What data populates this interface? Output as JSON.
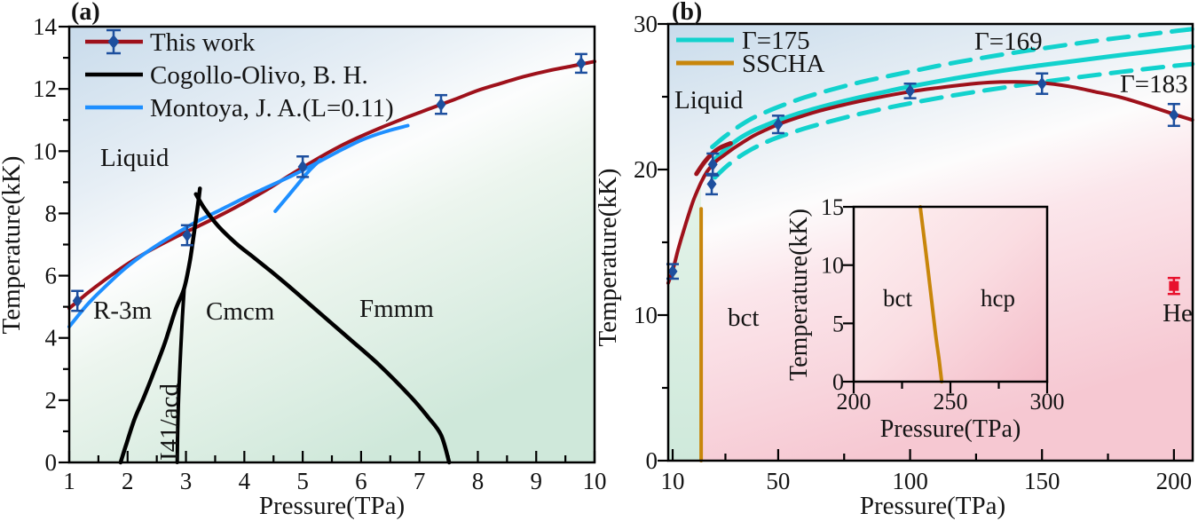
{
  "figure": {
    "panel_a_tag": "(a)",
    "panel_b_tag": "(b)"
  },
  "colors": {
    "darkred": "#9e111b",
    "navy": "#1d4f9e",
    "blue": "#1e8fff",
    "black": "#000000",
    "cyan": "#12d2cd",
    "gold": "#c8860b",
    "red": "#e8112d"
  },
  "panel_a": {
    "xlabel": "Pressure(TPa)",
    "ylabel": "Temperature(kK)",
    "legend": [
      {
        "label": "This work"
      },
      {
        "label": "Cogollo-Olivo, B. H."
      },
      {
        "label": "Montoya, J. A.(L=0.11)"
      }
    ],
    "labels": {
      "liquid": "Liquid",
      "r3m": "R-3m",
      "cmcm": "Cmcm",
      "fmmm": "Fmmm",
      "i41acd": "I41/acd"
    }
  },
  "panel_b": {
    "xlabel": "Pressure(TPa)",
    "ylabel": "Temperature(kK)",
    "legend": [
      {
        "label": "Γ=175"
      },
      {
        "label": "SSCHA"
      }
    ],
    "labels": {
      "liquid": "Liquid",
      "bct": "bct",
      "gamma169": "Γ=169",
      "gamma183": "Γ=183",
      "he": "He"
    }
  },
  "inset": {
    "xlabel": "Pressure(TPa)",
    "ylabel": "Temperature(kK)",
    "labels": {
      "bct": "bct",
      "hcp": "hcp"
    }
  },
  "chart_data": [
    {
      "id": "a",
      "type": "line",
      "title": "(a)",
      "xlabel": "Pressure(TPa)",
      "ylabel": "Temperature(kK)",
      "xlim": [
        1,
        10
      ],
      "ylim": [
        0,
        14
      ],
      "grid": false,
      "legend_position": "top-left",
      "xticks": [
        1,
        2,
        3,
        4,
        5,
        6,
        7,
        8,
        9,
        10
      ],
      "xminor": [
        1.5,
        2.5,
        3.5,
        4.5,
        5.5,
        6.5,
        7.5,
        8.5,
        9.5
      ],
      "yticks": [
        0,
        2,
        4,
        6,
        8,
        10,
        12,
        14
      ],
      "yminor": [
        1,
        3,
        5,
        7,
        9,
        11,
        13
      ],
      "series": [
        {
          "name": "this-work-melting-line",
          "color": "darkred",
          "width": 4,
          "points": [
            [
              1.0,
              4.95
            ],
            [
              1.3,
              5.42
            ],
            [
              1.6,
              5.85
            ],
            [
              2.0,
              6.38
            ],
            [
              2.4,
              6.83
            ],
            [
              2.8,
              7.22
            ],
            [
              3.2,
              7.58
            ],
            [
              3.6,
              7.95
            ],
            [
              4.0,
              8.35
            ],
            [
              4.4,
              8.78
            ],
            [
              4.8,
              9.25
            ],
            [
              5.2,
              9.7
            ],
            [
              5.6,
              10.12
            ],
            [
              6.0,
              10.48
            ],
            [
              6.4,
              10.8
            ],
            [
              6.8,
              11.1
            ],
            [
              7.2,
              11.38
            ],
            [
              7.6,
              11.66
            ],
            [
              8.0,
              11.95
            ],
            [
              8.4,
              12.18
            ],
            [
              8.8,
              12.4
            ],
            [
              9.2,
              12.58
            ],
            [
              9.6,
              12.73
            ],
            [
              10.0,
              12.88
            ]
          ]
        },
        {
          "name": "montoya-melting-line",
          "color": "blue",
          "width": 4,
          "points": [
            [
              1.0,
              4.36
            ],
            [
              1.3,
              5.05
            ],
            [
              1.6,
              5.62
            ],
            [
              2.0,
              6.3
            ],
            [
              2.4,
              6.85
            ],
            [
              2.8,
              7.32
            ],
            [
              3.2,
              7.75
            ],
            [
              3.6,
              8.12
            ],
            [
              4.0,
              8.5
            ],
            [
              4.4,
              8.85
            ],
            [
              4.8,
              9.2
            ],
            [
              5.2,
              9.58
            ],
            [
              5.6,
              9.98
            ],
            [
              6.0,
              10.35
            ],
            [
              6.4,
              10.62
            ],
            [
              6.8,
              10.82
            ]
          ]
        },
        {
          "name": "montoya-branch",
          "color": "blue",
          "width": 4,
          "points": [
            [
              4.53,
              8.07
            ],
            [
              4.7,
              8.45
            ],
            [
              4.9,
              8.9
            ],
            [
              5.1,
              9.35
            ],
            [
              5.3,
              9.72
            ]
          ]
        },
        {
          "name": "cogollo-olivo-r3m-boundary",
          "color": "black",
          "width": 4.5,
          "points": [
            [
              1.88,
              0
            ],
            [
              1.98,
              0.6
            ],
            [
              2.12,
              1.4
            ],
            [
              2.28,
              2.1
            ],
            [
              2.46,
              2.95
            ],
            [
              2.64,
              3.85
            ],
            [
              2.82,
              4.9
            ],
            [
              2.97,
              5.6
            ],
            [
              3.07,
              6.5
            ],
            [
              3.14,
              7.4
            ],
            [
              3.2,
              8.2
            ],
            [
              3.24,
              8.8
            ]
          ]
        },
        {
          "name": "cogollo-olivo-i41acd-boundary",
          "color": "black",
          "width": 4,
          "points": [
            [
              2.85,
              0
            ],
            [
              2.86,
              1.2
            ],
            [
              2.88,
              2.4
            ],
            [
              2.91,
              3.6
            ],
            [
              2.94,
              4.7
            ],
            [
              2.97,
              5.6
            ]
          ]
        },
        {
          "name": "cogollo-olivo-cmcm-fmmm-boundary",
          "color": "black",
          "width": 4.5,
          "points": [
            [
              3.17,
              8.62
            ],
            [
              3.32,
              8.15
            ],
            [
              3.55,
              7.6
            ],
            [
              3.85,
              7.05
            ],
            [
              4.15,
              6.6
            ],
            [
              4.45,
              6.15
            ],
            [
              4.8,
              5.6
            ],
            [
              5.2,
              4.95
            ],
            [
              5.77,
              4.02
            ],
            [
              6.3,
              3.15
            ],
            [
              6.85,
              2.11
            ],
            [
              7.15,
              1.45
            ],
            [
              7.37,
              0.88
            ],
            [
              7.51,
              0
            ]
          ]
        },
        {
          "name": "this-work-points",
          "type": "scatter",
          "marker": "diamond",
          "color": "navy",
          "points": [
            [
              1.14,
              5.19,
              0.32
            ],
            [
              3.02,
              7.3,
              0.32
            ],
            [
              5.0,
              9.5,
              0.33
            ],
            [
              7.37,
              11.5,
              0.3
            ],
            [
              9.77,
              12.82,
              0.3
            ]
          ]
        }
      ],
      "phase_labels": [
        "Liquid",
        "R-3m",
        "Cmcm",
        "Fmmm",
        "I41/acd"
      ]
    },
    {
      "id": "b",
      "type": "line",
      "title": "(b)",
      "xlabel": "Pressure(TPa)",
      "ylabel": "Temperature(kK)",
      "xlim": [
        8.3,
        207
      ],
      "ylim": [
        0,
        30
      ],
      "grid": false,
      "legend_position": "top-left",
      "xticks": [
        10,
        50,
        100,
        150,
        200
      ],
      "xminor": [
        30,
        75,
        125,
        175
      ],
      "yticks": [
        0,
        10,
        20,
        30
      ],
      "yminor": [
        5,
        15,
        25
      ],
      "series": [
        {
          "name": "gold-bct-boundary-vertical",
          "color": "gold",
          "width": 4,
          "points": [
            [
              20.8,
              0
            ],
            [
              20.8,
              17.3
            ]
          ]
        },
        {
          "name": "gamma-169-dashed",
          "color": "cyan",
          "width": 5,
          "dash": "23 13",
          "points": [
            [
              25,
              21.55
            ],
            [
              30,
              22.3
            ],
            [
              35,
              22.95
            ],
            [
              40,
              23.5
            ],
            [
              45,
              23.92
            ],
            [
              50,
              24.3
            ],
            [
              60,
              24.95
            ],
            [
              70,
              25.48
            ],
            [
              80,
              25.95
            ],
            [
              90,
              26.35
            ],
            [
              100,
              26.73
            ],
            [
              115,
              27.28
            ],
            [
              130,
              27.75
            ],
            [
              145,
              28.18
            ],
            [
              160,
              28.58
            ],
            [
              175,
              28.95
            ],
            [
              190,
              29.28
            ],
            [
              200,
              29.5
            ],
            [
              207,
              29.65
            ]
          ]
        },
        {
          "name": "gamma-183-dashed",
          "color": "cyan",
          "width": 5,
          "dash": "23 13",
          "points": [
            [
              26,
              19.45
            ],
            [
              30,
              20.15
            ],
            [
              35,
              20.85
            ],
            [
              40,
              21.4
            ],
            [
              45,
              21.85
            ],
            [
              50,
              22.22
            ],
            [
              60,
              22.82
            ],
            [
              70,
              23.32
            ],
            [
              80,
              23.78
            ],
            [
              90,
              24.18
            ],
            [
              100,
              24.55
            ],
            [
              115,
              25.05
            ],
            [
              130,
              25.48
            ],
            [
              145,
              25.88
            ],
            [
              160,
              26.25
            ],
            [
              175,
              26.6
            ],
            [
              190,
              26.92
            ],
            [
              200,
              27.12
            ],
            [
              207,
              27.25
            ]
          ]
        },
        {
          "name": "gamma-175-solid",
          "color": "cyan",
          "width": 5,
          "points": [
            [
              26,
              20.7
            ],
            [
              30,
              21.4
            ],
            [
              35,
              22.1
            ],
            [
              40,
              22.62
            ],
            [
              45,
              23.02
            ],
            [
              50,
              23.38
            ],
            [
              60,
              23.98
            ],
            [
              70,
              24.48
            ],
            [
              80,
              24.92
            ],
            [
              90,
              25.32
            ],
            [
              100,
              25.7
            ],
            [
              115,
              26.2
            ],
            [
              130,
              26.65
            ],
            [
              145,
              27.05
            ],
            [
              160,
              27.4
            ],
            [
              175,
              27.75
            ],
            [
              190,
              28.08
            ],
            [
              200,
              28.3
            ],
            [
              207,
              28.45
            ]
          ]
        },
        {
          "name": "this-work-bct-segment",
          "color": "darkred",
          "width": 5,
          "points": [
            [
              19,
              19.7
            ],
            [
              22,
              20.5
            ],
            [
              25,
              21.1
            ],
            [
              28,
              21.5
            ],
            [
              32,
              21.8
            ]
          ]
        },
        {
          "name": "this-work-melting-line",
          "color": "darkred",
          "width": 4,
          "points": [
            [
              8.3,
              12.2
            ],
            [
              9.2,
              12.65
            ],
            [
              10,
              13.05
            ],
            [
              11,
              13.75
            ],
            [
              12,
              14.45
            ],
            [
              13.5,
              15.4
            ],
            [
              15,
              16.3
            ],
            [
              16.5,
              17.15
            ],
            [
              18,
              17.95
            ],
            [
              19.5,
              18.6
            ],
            [
              21,
              19.2
            ],
            [
              23,
              19.85
            ],
            [
              25,
              20.3
            ],
            [
              27,
              20.65
            ],
            [
              30,
              21.05
            ],
            [
              33,
              21.45
            ],
            [
              36,
              21.8
            ],
            [
              40,
              22.25
            ],
            [
              45,
              22.7
            ],
            [
              50,
              23.1
            ],
            [
              57,
              23.55
            ],
            [
              65,
              24.0
            ],
            [
              75,
              24.45
            ],
            [
              85,
              24.85
            ],
            [
              100,
              25.35
            ],
            [
              110,
              25.6
            ],
            [
              120,
              25.82
            ],
            [
              130,
              25.98
            ],
            [
              140,
              26.02
            ],
            [
              150,
              25.95
            ],
            [
              160,
              25.72
            ],
            [
              170,
              25.35
            ],
            [
              180,
              24.95
            ],
            [
              190,
              24.4
            ],
            [
              200,
              23.8
            ],
            [
              207,
              23.4
            ]
          ]
        },
        {
          "name": "this-work-points",
          "type": "scatter",
          "marker": "diamond",
          "color": "navy",
          "points": [
            [
              10,
              13.0,
              0.5
            ],
            [
              24.8,
              19.0,
              0.7
            ],
            [
              25.2,
              20.35,
              0.75
            ],
            [
              50,
              23.1,
              0.6
            ],
            [
              100,
              25.4,
              0.5
            ],
            [
              150,
              25.9,
              0.7
            ],
            [
              200,
              23.75,
              0.75
            ]
          ]
        },
        {
          "name": "helium-point",
          "type": "scatter",
          "marker": "square",
          "color": "red",
          "points": [
            [
              200,
              12.0,
              0.55
            ]
          ]
        }
      ],
      "phase_labels": [
        "Liquid",
        "bct",
        "Γ=169",
        "Γ=183",
        "He"
      ]
    },
    {
      "id": "i",
      "type": "line",
      "title": "inset",
      "xlabel": "Pressure(TPa)",
      "ylabel": "Temperature(kK)",
      "xlim": [
        200,
        300
      ],
      "ylim": [
        0,
        15
      ],
      "grid": false,
      "xticks": [
        200,
        250,
        300
      ],
      "xminor": [
        225,
        275
      ],
      "yticks": [
        0,
        5,
        10,
        15
      ],
      "yminor": [],
      "series": [
        {
          "name": "sscha-bct-hcp-boundary",
          "color": "gold",
          "width": 4,
          "points": [
            [
              234.4,
              15
            ],
            [
              238.5,
              9.5
            ],
            [
              242,
              4.5
            ],
            [
              244.2,
              1.8
            ],
            [
              245.5,
              0
            ]
          ]
        }
      ],
      "phase_labels": [
        "bct",
        "hcp"
      ]
    }
  ]
}
